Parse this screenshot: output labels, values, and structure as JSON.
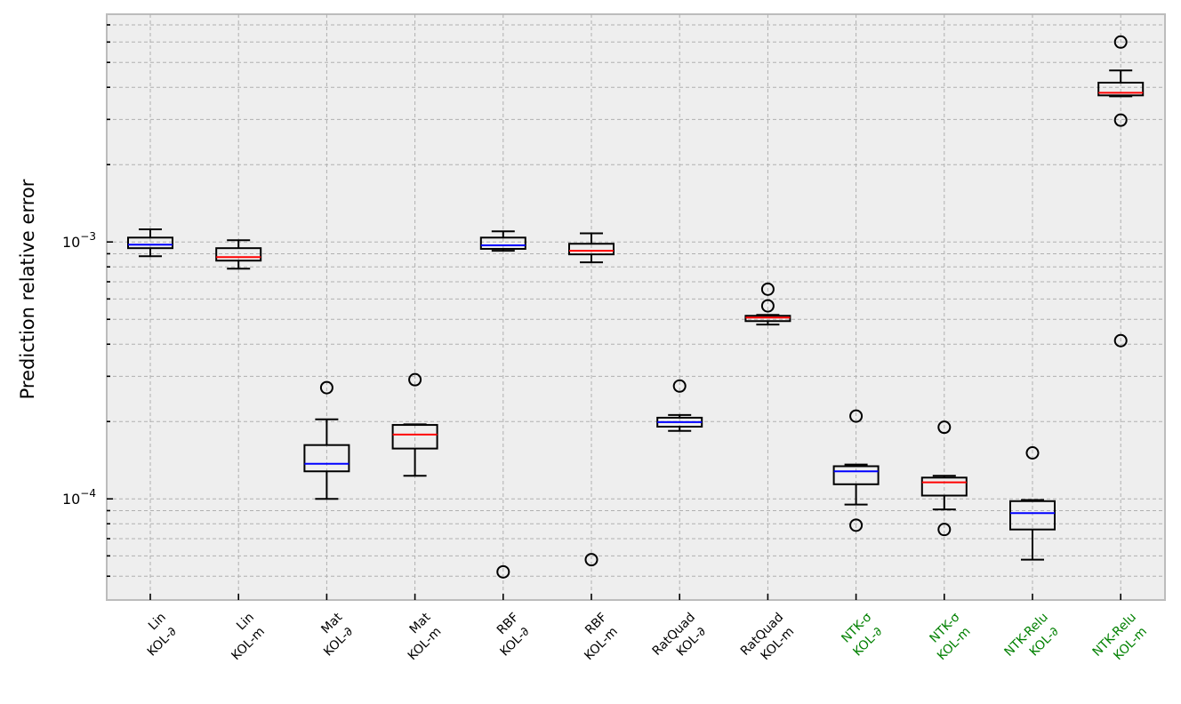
{
  "chart_data": {
    "type": "box",
    "title": "",
    "xlabel": "",
    "ylabel": "Prediction relative error",
    "yscale": "log",
    "ylim": [
      4.04e-05,
      0.0077
    ],
    "grid": true,
    "ytick_labels": [
      {
        "value": 0.001,
        "base": "10",
        "exp": "−3"
      },
      {
        "value": 0.0001,
        "base": "10",
        "exp": "−4"
      }
    ],
    "categories": [
      {
        "line1": "Lin",
        "line2": "KOL-∂",
        "color": "#000000",
        "median_color": "#0000ff"
      },
      {
        "line1": "Lin",
        "line2": "KOL-m",
        "color": "#000000",
        "median_color": "#ff0000"
      },
      {
        "line1": "Mat",
        "line2": "KOL-∂",
        "color": "#000000",
        "median_color": "#0000ff"
      },
      {
        "line1": "Mat",
        "line2": "KOL-m",
        "color": "#000000",
        "median_color": "#ff0000"
      },
      {
        "line1": "RBF",
        "line2": "KOL-∂",
        "color": "#000000",
        "median_color": "#0000ff"
      },
      {
        "line1": "RBF",
        "line2": "KOL-m",
        "color": "#000000",
        "median_color": "#ff0000"
      },
      {
        "line1": "RatQuad",
        "line2": "KOL-∂",
        "color": "#000000",
        "median_color": "#0000ff"
      },
      {
        "line1": "RatQuad",
        "line2": "KOL-m",
        "color": "#000000",
        "median_color": "#ff0000"
      },
      {
        "line1": "NTK-σ",
        "line2": "KOL-∂",
        "color": "#008000",
        "median_color": "#0000ff"
      },
      {
        "line1": "NTK-σ",
        "line2": "KOL-m",
        "color": "#008000",
        "median_color": "#ff0000"
      },
      {
        "line1": "NTK-Relu",
        "line2": "KOL-∂",
        "color": "#008000",
        "median_color": "#0000ff"
      },
      {
        "line1": "NTK-Relu",
        "line2": "KOL-m",
        "color": "#008000",
        "median_color": "#ff0000"
      }
    ],
    "boxes": [
      {
        "whislo": 0.00088,
        "q1": 0.000946,
        "med": 0.000976,
        "q3": 0.00104,
        "whishi": 0.00112,
        "fliers": []
      },
      {
        "whislo": 0.000787,
        "q1": 0.000846,
        "med": 0.000873,
        "q3": 0.000946,
        "whishi": 0.001016,
        "fliers": []
      },
      {
        "whislo": 0.0001,
        "q1": 0.000128,
        "med": 0.000137,
        "q3": 0.000162,
        "whishi": 0.000204,
        "fliers": [
          0.000271
        ]
      },
      {
        "whislo": 0.000123,
        "q1": 0.000157,
        "med": 0.000178,
        "q3": 0.000194,
        "whishi": 0.000195,
        "fliers": [
          0.000291
        ]
      },
      {
        "whislo": 0.000924,
        "q1": 0.00094,
        "med": 0.00097,
        "q3": 0.00104,
        "whishi": 0.0011,
        "fliers": [
          5.2e-05
        ]
      },
      {
        "whislo": 0.000833,
        "q1": 0.000895,
        "med": 0.000924,
        "q3": 0.000984,
        "whishi": 0.00108,
        "fliers": [
          5.8e-05
        ]
      },
      {
        "whislo": 0.000184,
        "q1": 0.000191,
        "med": 0.000199,
        "q3": 0.000207,
        "whishi": 0.000212,
        "fliers": [
          0.000275
        ]
      },
      {
        "whislo": 0.000477,
        "q1": 0.000492,
        "med": 0.000508,
        "q3": 0.000516,
        "whishi": 0.00052,
        "fliers": [
          0.000655,
          0.000564
        ]
      },
      {
        "whislo": 9.5e-05,
        "q1": 0.000114,
        "med": 0.000128,
        "q3": 0.000134,
        "whishi": 0.000136,
        "fliers": [
          0.00021,
          7.9e-05
        ]
      },
      {
        "whislo": 9.1e-05,
        "q1": 0.000103,
        "med": 0.000116,
        "q3": 0.000121,
        "whishi": 0.000123,
        "fliers": [
          0.00019,
          7.6e-05
        ]
      },
      {
        "whislo": 5.8e-05,
        "q1": 7.6e-05,
        "med": 8.8e-05,
        "q3": 9.8e-05,
        "whishi": 9.9e-05,
        "fliers": [
          0.000151
        ]
      },
      {
        "whislo": 0.00369,
        "q1": 0.00372,
        "med": 0.00381,
        "q3": 0.00417,
        "whishi": 0.00465,
        "fliers": [
          0.006,
          0.00298,
          0.000413
        ]
      }
    ]
  }
}
